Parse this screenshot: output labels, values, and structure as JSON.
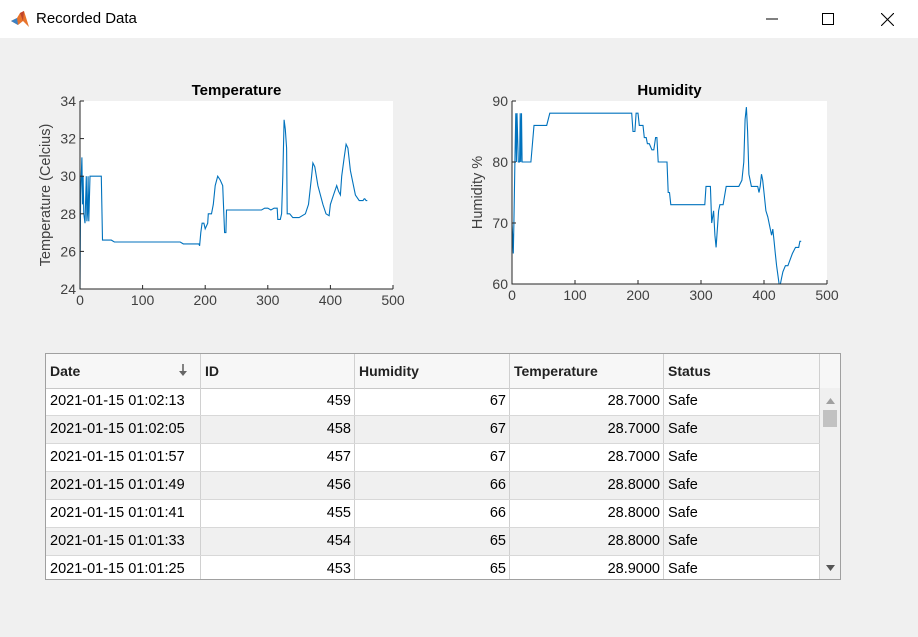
{
  "window": {
    "title": "Recorded Data",
    "app_icon": "matlab-logo-icon",
    "controls": [
      "minimize-icon",
      "maximize-icon",
      "close-icon"
    ]
  },
  "charts": {
    "temperature": {
      "title": "Temperature",
      "ylabel": "Temperature (Celcius)",
      "xlabel": "",
      "xlim": [
        0,
        500
      ],
      "ylim": [
        24,
        34
      ],
      "xticks": [
        "0",
        "100",
        "200",
        "300",
        "400",
        "500"
      ],
      "yticks": [
        "24",
        "26",
        "28",
        "30",
        "32",
        "34"
      ],
      "color": "#0072bd"
    },
    "humidity": {
      "title": "Humidity",
      "ylabel": "Humidity %",
      "xlabel": "",
      "xlim": [
        0,
        500
      ],
      "ylim": [
        60,
        90
      ],
      "xticks": [
        "0",
        "100",
        "200",
        "300",
        "400",
        "500"
      ],
      "yticks": [
        "60",
        "70",
        "80",
        "90"
      ],
      "color": "#0072bd"
    }
  },
  "chart_data": [
    {
      "type": "line",
      "title": "Temperature",
      "ylabel": "Temperature (Celcius)",
      "xlim": [
        0,
        500
      ],
      "ylim": [
        24,
        34
      ],
      "series": [
        {
          "values": [
            [
              0,
              24
            ],
            [
              1,
              29
            ],
            [
              3,
              31
            ],
            [
              4,
              28.5
            ],
            [
              5,
              30
            ],
            [
              6,
              28
            ],
            [
              8,
              27.5
            ],
            [
              10,
              30
            ],
            [
              11,
              27.6
            ],
            [
              12,
              28
            ],
            [
              13,
              30
            ],
            [
              14,
              27.6
            ],
            [
              16,
              30
            ],
            [
              25,
              30
            ],
            [
              34,
              30
            ],
            [
              36,
              26.6
            ],
            [
              40,
              26.6
            ],
            [
              50,
              26.6
            ],
            [
              55,
              26.5
            ],
            [
              60,
              26.5
            ],
            [
              100,
              26.5
            ],
            [
              160,
              26.5
            ],
            [
              165,
              26.4
            ],
            [
              175,
              26.4
            ],
            [
              190,
              26.4
            ],
            [
              191,
              26.3
            ],
            [
              193,
              27
            ],
            [
              195,
              27.5
            ],
            [
              198,
              27.5
            ],
            [
              200,
              27.2
            ],
            [
              204,
              27.5
            ],
            [
              205,
              28
            ],
            [
              210,
              28
            ],
            [
              213,
              28.5
            ],
            [
              216,
              29.5
            ],
            [
              220,
              30
            ],
            [
              224,
              29.8
            ],
            [
              228,
              29.5
            ],
            [
              231,
              27
            ],
            [
              233,
              27
            ],
            [
              234,
              28.2
            ],
            [
              240,
              28.2
            ],
            [
              250,
              28.2
            ],
            [
              290,
              28.2
            ],
            [
              295,
              28.3
            ],
            [
              300,
              28.3
            ],
            [
              305,
              28.2
            ],
            [
              310,
              28.3
            ],
            [
              315,
              28.3
            ],
            [
              316,
              27.7
            ],
            [
              320,
              27.7
            ],
            [
              322,
              28
            ],
            [
              324,
              30
            ],
            [
              326,
              33
            ],
            [
              328,
              32.5
            ],
            [
              330,
              31.5
            ],
            [
              331,
              28
            ],
            [
              335,
              28
            ],
            [
              340,
              27.8
            ],
            [
              350,
              27.8
            ],
            [
              360,
              28
            ],
            [
              365,
              28.5
            ],
            [
              370,
              30
            ],
            [
              372,
              30.7
            ],
            [
              375,
              30.5
            ],
            [
              380,
              29.5
            ],
            [
              388,
              28.5
            ],
            [
              393,
              28
            ],
            [
              398,
              27.9
            ],
            [
              400,
              28.5
            ],
            [
              405,
              29
            ],
            [
              410,
              29.5
            ],
            [
              413,
              29.2
            ],
            [
              416,
              29
            ],
            [
              418,
              30
            ],
            [
              422,
              31
            ],
            [
              425,
              31.7
            ],
            [
              428,
              31.5
            ],
            [
              432,
              30.3
            ],
            [
              440,
              29
            ],
            [
              446,
              28.7
            ],
            [
              452,
              28.7
            ],
            [
              454,
              28.8
            ],
            [
              455,
              28.8
            ],
            [
              457,
              28.7
            ],
            [
              459,
              28.7
            ]
          ]
        }
      ]
    },
    {
      "type": "line",
      "title": "Humidity",
      "ylabel": "Humidity %",
      "xlim": [
        0,
        500
      ],
      "ylim": [
        60,
        90
      ],
      "series": [
        {
          "values": [
            [
              0,
              70
            ],
            [
              1,
              68
            ],
            [
              2,
              65
            ],
            [
              3,
              70
            ],
            [
              5,
              82
            ],
            [
              6,
              88
            ],
            [
              7,
              80
            ],
            [
              8,
              88
            ],
            [
              10,
              80
            ],
            [
              12,
              80
            ],
            [
              13,
              88
            ],
            [
              14,
              80
            ],
            [
              15,
              88
            ],
            [
              16,
              80
            ],
            [
              24,
              80
            ],
            [
              30,
              80
            ],
            [
              35,
              86
            ],
            [
              40,
              86
            ],
            [
              55,
              86
            ],
            [
              60,
              88
            ],
            [
              70,
              88
            ],
            [
              100,
              88
            ],
            [
              150,
              88
            ],
            [
              185,
              88
            ],
            [
              190,
              88
            ],
            [
              192,
              85
            ],
            [
              195,
              85
            ],
            [
              197,
              88
            ],
            [
              200,
              88
            ],
            [
              202,
              86
            ],
            [
              205,
              86
            ],
            [
              208,
              86
            ],
            [
              210,
              84
            ],
            [
              213,
              84
            ],
            [
              215,
              83
            ],
            [
              218,
              83
            ],
            [
              222,
              82
            ],
            [
              225,
              82
            ],
            [
              228,
              84
            ],
            [
              230,
              84
            ],
            [
              232,
              80
            ],
            [
              234,
              80
            ],
            [
              240,
              80
            ],
            [
              246,
              80
            ],
            [
              248,
              75
            ],
            [
              250,
              75
            ],
            [
              252,
              73
            ],
            [
              260,
              73
            ],
            [
              280,
              73
            ],
            [
              300,
              73
            ],
            [
              306,
              73
            ],
            [
              308,
              76
            ],
            [
              315,
              76
            ],
            [
              317,
              70
            ],
            [
              320,
              72
            ],
            [
              322,
              68
            ],
            [
              324,
              66
            ],
            [
              328,
              72
            ],
            [
              330,
              73
            ],
            [
              335,
              73
            ],
            [
              340,
              76
            ],
            [
              350,
              76
            ],
            [
              360,
              76
            ],
            [
              365,
              77
            ],
            [
              368,
              80
            ],
            [
              370,
              87
            ],
            [
              372,
              89
            ],
            [
              374,
              85
            ],
            [
              376,
              78
            ],
            [
              380,
              76
            ],
            [
              390,
              76
            ],
            [
              392,
              75
            ],
            [
              394,
              76
            ],
            [
              396,
              78
            ],
            [
              398,
              77
            ],
            [
              400,
              75
            ],
            [
              403,
              72
            ],
            [
              406,
              71
            ],
            [
              410,
              69
            ],
            [
              412,
              68
            ],
            [
              414,
              69
            ],
            [
              416,
              67
            ],
            [
              418,
              65
            ],
            [
              420,
              63
            ],
            [
              424,
              60
            ],
            [
              426,
              60
            ],
            [
              428,
              61
            ],
            [
              430,
              62
            ],
            [
              434,
              63
            ],
            [
              438,
              63
            ],
            [
              445,
              65
            ],
            [
              450,
              66
            ],
            [
              455,
              66
            ],
            [
              457,
              67
            ],
            [
              459,
              67
            ]
          ]
        }
      ]
    }
  ],
  "table": {
    "columns": [
      "Date",
      "ID",
      "Humidity",
      "Temperature",
      "Status"
    ],
    "sort_icon": "sort-descending-arrow-icon",
    "rows": [
      {
        "date": "2021-01-15 01:02:13",
        "id": "459",
        "humidity": "67",
        "temperature": "28.7000",
        "status": "Safe"
      },
      {
        "date": "2021-01-15 01:02:05",
        "id": "458",
        "humidity": "67",
        "temperature": "28.7000",
        "status": "Safe"
      },
      {
        "date": "2021-01-15 01:01:57",
        "id": "457",
        "humidity": "67",
        "temperature": "28.7000",
        "status": "Safe"
      },
      {
        "date": "2021-01-15 01:01:49",
        "id": "456",
        "humidity": "66",
        "temperature": "28.8000",
        "status": "Safe"
      },
      {
        "date": "2021-01-15 01:01:41",
        "id": "455",
        "humidity": "66",
        "temperature": "28.8000",
        "status": "Safe"
      },
      {
        "date": "2021-01-15 01:01:33",
        "id": "454",
        "humidity": "65",
        "temperature": "28.8000",
        "status": "Safe"
      },
      {
        "date": "2021-01-15 01:01:25",
        "id": "453",
        "humidity": "65",
        "temperature": "28.9000",
        "status": "Safe"
      }
    ]
  }
}
